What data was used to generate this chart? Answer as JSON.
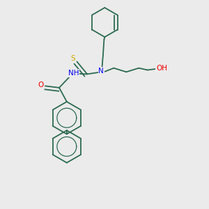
{
  "background_color": "#ebebeb",
  "bond_color": "#2d6b52",
  "atom_colors": {
    "N": "#0000ee",
    "O": "#ee0000",
    "S": "#ccaa00",
    "H": "#000000",
    "C": "#2d6b52"
  },
  "figsize": [
    3.0,
    3.0
  ],
  "dpi": 100
}
